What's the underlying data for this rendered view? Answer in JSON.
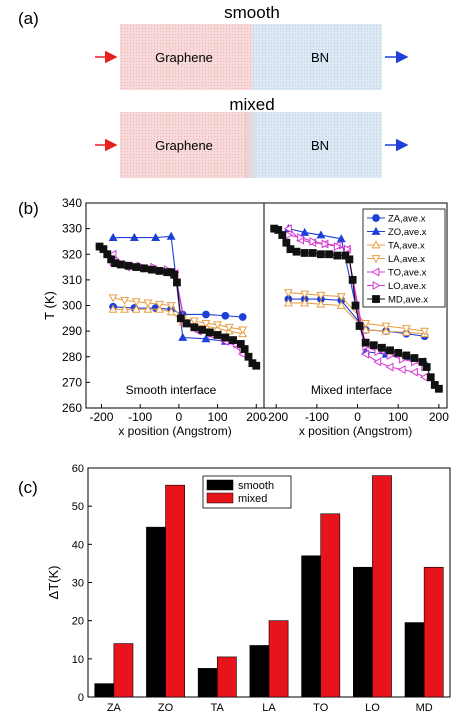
{
  "panel_labels": {
    "a": "(a)",
    "b": "(b)",
    "c": "(c)"
  },
  "schematic": {
    "smooth_label": "smooth",
    "mixed_label": "mixed",
    "graphene": "Graphene",
    "bn": "BN",
    "colors": {
      "graphene": "#f6cfcf",
      "bn": "#d3e1f0",
      "arrow_in": "#e8201f",
      "arrow_out": "#1f3fd8"
    }
  },
  "chart_data": [
    {
      "type": "line",
      "panel": "b-left",
      "ylabel": "T (K)",
      "xlabel": "x position (Angstrom)",
      "annotation": "Smooth interface",
      "xlim": [
        -240,
        220
      ],
      "ylim": [
        260,
        340
      ],
      "xticks": [
        -200,
        -100,
        0,
        100,
        200
      ],
      "yticks": [
        260,
        270,
        280,
        290,
        300,
        310,
        320,
        330,
        340
      ],
      "series": [
        {
          "name": "ZA,ave.x",
          "color": "#1f3fd8",
          "marker": "circle",
          "x": [
            -170,
            -115,
            -60,
            -20,
            10,
            70,
            120,
            165
          ],
          "y": [
            299.5,
            299,
            299,
            298.5,
            296.5,
            296.5,
            296,
            295.5
          ]
        },
        {
          "name": "ZO,ave.x",
          "color": "#1f3fd8",
          "marker": "triangle-up",
          "x": [
            -170,
            -115,
            -60,
            -20,
            10,
            70,
            120,
            165
          ],
          "y": [
            326.5,
            326.5,
            326.5,
            327,
            287.5,
            287,
            286,
            284
          ]
        },
        {
          "name": "TA,ave.x",
          "color": "#e8a046",
          "marker": "triangle-up-open",
          "x": [
            -170,
            -140,
            -110,
            -80,
            -50,
            -20,
            10,
            40,
            70,
            100,
            130,
            165
          ],
          "y": [
            298.5,
            298.5,
            298.5,
            298.5,
            298.5,
            297.5,
            293.5,
            292.5,
            292,
            291,
            290,
            289
          ]
        },
        {
          "name": "LA,ave.x",
          "color": "#e8a046",
          "marker": "triangle-down-open",
          "x": [
            -170,
            -140,
            -110,
            -80,
            -50,
            -20,
            10,
            40,
            70,
            100,
            130,
            165
          ],
          "y": [
            303,
            302,
            301.5,
            301,
            300.5,
            300,
            295,
            294,
            293,
            292.5,
            291.5,
            290.5
          ]
        },
        {
          "name": "TO,ave.x",
          "color": "#d63ad6",
          "marker": "triangle-left-open",
          "x": [
            -170,
            -135,
            -100,
            -65,
            -30,
            -10,
            15,
            50,
            85,
            120,
            150,
            165
          ],
          "y": [
            320,
            315,
            314.5,
            314,
            313,
            312.5,
            293,
            290,
            288.5,
            286,
            284,
            281
          ]
        },
        {
          "name": "LO,ave.x",
          "color": "#d63ad6",
          "marker": "triangle-right-open",
          "x": [
            -170,
            -135,
            -100,
            -65,
            -30,
            -10,
            15,
            50,
            85,
            120,
            150,
            165
          ],
          "y": [
            317,
            316,
            315.5,
            315,
            314,
            313,
            293.5,
            291,
            289,
            287,
            285,
            283
          ]
        },
        {
          "name": "MD,ave.x",
          "color": "#111111",
          "marker": "square",
          "x": [
            -205,
            -195,
            -185,
            -175,
            -165,
            -150,
            -130,
            -110,
            -90,
            -70,
            -50,
            -30,
            -20,
            -12,
            -5,
            5,
            20,
            40,
            60,
            80,
            100,
            120,
            140,
            160,
            170,
            180,
            190,
            200
          ],
          "y": [
            323,
            322,
            320,
            318,
            316.5,
            316,
            315.5,
            315,
            314.5,
            314,
            313.5,
            313,
            313,
            312,
            309,
            295,
            293,
            291.5,
            290.5,
            289.5,
            288.5,
            287.5,
            286.5,
            285,
            283,
            280,
            277.5,
            276.5
          ]
        }
      ]
    },
    {
      "type": "line",
      "panel": "b-right",
      "annotation": "Mixed interface",
      "xlabel": "x position (Angstrom)",
      "xlim": [
        -230,
        220
      ],
      "ylim": [
        260,
        340
      ],
      "xticks": [
        -200,
        -100,
        0,
        100,
        200
      ],
      "series": [
        {
          "name": "ZA,ave.x",
          "color": "#1f3fd8",
          "marker": "circle",
          "x": [
            -170,
            -130,
            -90,
            -40,
            20,
            70,
            120,
            165
          ],
          "y": [
            302.5,
            302.5,
            302.5,
            302,
            290.5,
            290,
            289,
            288
          ]
        },
        {
          "name": "ZO,ave.x",
          "color": "#1f3fd8",
          "marker": "triangle-up",
          "x": [
            -170,
            -130,
            -90,
            -40,
            20,
            70,
            120,
            165
          ],
          "y": [
            330,
            328.5,
            327.5,
            326,
            282,
            281,
            280,
            278
          ]
        },
        {
          "name": "TA,ave.x",
          "color": "#e8a046",
          "marker": "triangle-up-open",
          "x": [
            -170,
            -130,
            -90,
            -40,
            20,
            70,
            120,
            165
          ],
          "y": [
            301,
            301,
            300.5,
            300,
            290.5,
            290,
            289.5,
            289
          ]
        },
        {
          "name": "LA,ave.x",
          "color": "#e8a046",
          "marker": "triangle-down-open",
          "x": [
            -170,
            -130,
            -90,
            -40,
            20,
            70,
            120,
            165
          ],
          "y": [
            305,
            304.5,
            304,
            303.5,
            293,
            292,
            291,
            290
          ]
        },
        {
          "name": "TO,ave.x",
          "color": "#d63ad6",
          "marker": "triangle-left-open",
          "x": [
            -170,
            -140,
            -110,
            -80,
            -50,
            -25,
            20,
            50,
            80,
            110,
            140,
            165
          ],
          "y": [
            330,
            325.5,
            324.5,
            324,
            323.5,
            322,
            281,
            278,
            276,
            275,
            274,
            272
          ]
        },
        {
          "name": "LO,ave.x",
          "color": "#d63ad6",
          "marker": "triangle-right-open",
          "x": [
            -170,
            -140,
            -110,
            -80,
            -50,
            -25,
            20,
            50,
            80,
            110,
            140,
            165
          ],
          "y": [
            327.5,
            326.5,
            325,
            324,
            323,
            322,
            284,
            282,
            280.5,
            279,
            278,
            276
          ]
        },
        {
          "name": "MD,ave.x",
          "color": "#111111",
          "marker": "square",
          "x": [
            -205,
            -195,
            -185,
            -175,
            -165,
            -150,
            -130,
            -110,
            -90,
            -70,
            -50,
            -30,
            -20,
            -12,
            -5,
            5,
            20,
            40,
            60,
            80,
            100,
            120,
            140,
            160,
            170,
            180,
            190,
            200
          ],
          "y": [
            330,
            329.5,
            327.5,
            324.5,
            322,
            321,
            320.5,
            320.5,
            320,
            320,
            319.5,
            319.5,
            318,
            310,
            300,
            292,
            285.5,
            284.5,
            283.5,
            282.5,
            281.5,
            280.5,
            279.5,
            278,
            276,
            272,
            269,
            267.5
          ]
        }
      ]
    },
    {
      "type": "bar",
      "panel": "c",
      "ylabel": "ΔT(K)",
      "categories": [
        "ZA",
        "ZO",
        "TA",
        "LA",
        "TO",
        "LO",
        "MD"
      ],
      "ylim": [
        0,
        60
      ],
      "yticks": [
        0,
        10,
        20,
        30,
        40,
        50,
        60
      ],
      "legend_position": "top-center",
      "series": [
        {
          "name": "smooth",
          "color": "#000000",
          "values": [
            3.5,
            44.5,
            7.5,
            13.5,
            37,
            34,
            19.5
          ]
        },
        {
          "name": "mixed",
          "color": "#e8141c",
          "values": [
            14,
            55.5,
            10.5,
            20,
            48,
            58,
            34
          ]
        }
      ]
    }
  ]
}
